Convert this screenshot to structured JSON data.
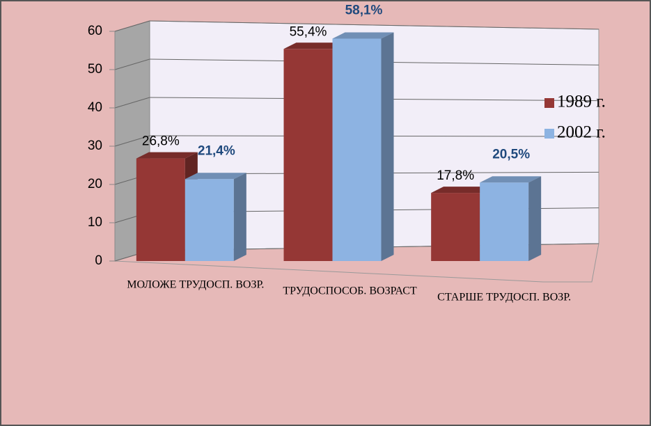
{
  "chart_data": {
    "type": "bar3d",
    "categories": [
      "МОЛОЖЕ ТРУДОСП. ВОЗР.",
      "ТРУДОСПОСОБ. ВОЗРАСТ",
      "СТАРШЕ ТРУДОСП. ВОЗР."
    ],
    "series": [
      {
        "name": "1989 г.",
        "color": "#953735",
        "label_color": "#000000",
        "values": [
          26.8,
          55.4,
          17.8
        ],
        "value_labels": [
          "26,8%",
          "55,4%",
          "17,8%"
        ]
      },
      {
        "name": "2002 г.",
        "color": "#8db3e2",
        "label_color": "#1f497d",
        "values": [
          21.4,
          58.1,
          20.5
        ],
        "value_labels": [
          "21,4%",
          "58,1%",
          "20,5%"
        ]
      }
    ],
    "ylim": [
      0,
      60
    ],
    "yticks": [
      0,
      10,
      20,
      30,
      40,
      50,
      60
    ],
    "grid": true,
    "legend": "right"
  }
}
